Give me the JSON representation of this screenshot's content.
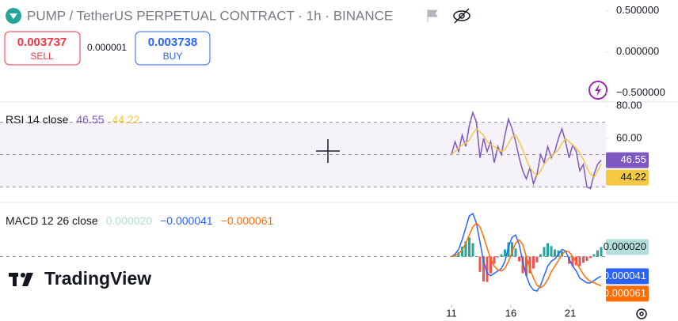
{
  "header": {
    "symbol": "PUMP / TetherUS PERPETUAL CONTRACT · 1h · BINANCE",
    "sell": {
      "price": "0.003737",
      "label": "SELL"
    },
    "spread": "0.000001",
    "buy": {
      "price": "0.003738",
      "label": "BUY"
    },
    "branding": "TradingView"
  },
  "chart_data": [
    {
      "type": "line",
      "ylim": [
        -0.6,
        0.63
      ],
      "yticks": [
        {
          "value": 0.5,
          "label": "0.500000"
        },
        {
          "value": 0,
          "label": "0.000000"
        },
        {
          "value": -0.5,
          "label": "−0.500000"
        }
      ]
    },
    {
      "type": "line",
      "title": "RSI 14 close",
      "xlim": [
        -27,
        24
      ],
      "x": [
        11,
        11.3,
        11.6,
        11.9,
        12.2,
        12.5,
        12.8,
        13.1,
        13.4,
        13.7,
        14,
        14.3,
        14.6,
        14.9,
        15.2,
        15.5,
        15.8,
        16.1,
        16.4,
        16.7,
        17,
        17.3,
        17.6,
        17.9,
        18.2,
        18.5,
        18.8,
        19.1,
        19.4,
        19.7,
        20,
        20.3,
        20.6,
        20.9,
        21.2,
        21.5,
        21.8,
        22.1,
        22.4,
        22.7,
        23,
        23.3,
        23.6
      ],
      "ylim": [
        21,
        82
      ],
      "yticks": [
        {
          "value": 80,
          "label": "80.00"
        },
        {
          "value": 60,
          "label": "60.00"
        }
      ],
      "levels": [
        70,
        50,
        30
      ],
      "band": [
        30,
        70
      ],
      "band_color": "#7e57c2",
      "series": [
        {
          "color": "#7e57c2",
          "values": [
            50,
            58,
            52,
            62,
            55,
            68,
            76,
            70,
            48,
            60,
            52,
            58,
            45,
            55,
            50,
            62,
            72,
            66,
            58,
            48,
            40,
            35,
            42,
            32,
            38,
            50,
            45,
            55,
            48,
            52,
            60,
            66,
            58,
            48,
            56,
            52,
            40,
            44,
            30,
            29,
            38,
            44,
            46.55
          ]
        },
        {
          "color": "#f5c842",
          "values": [
            50,
            52,
            54,
            56,
            57,
            59,
            63,
            66,
            64,
            62,
            58,
            56,
            55,
            53,
            52,
            53,
            57,
            61,
            62,
            58,
            53,
            47,
            42,
            39,
            37,
            40,
            44,
            47,
            49,
            51,
            53,
            57,
            60,
            58,
            56,
            54,
            51,
            47,
            42,
            38,
            36,
            40,
            44.22
          ]
        }
      ]
    },
    {
      "type": "line",
      "title": "MACD 12 26 close",
      "xlim": [
        -27,
        24
      ],
      "x": [
        11,
        11.3,
        11.6,
        11.9,
        12.2,
        12.5,
        12.8,
        13.1,
        13.4,
        13.7,
        14,
        14.3,
        14.6,
        14.9,
        15.2,
        15.5,
        15.8,
        16.1,
        16.4,
        16.7,
        17,
        17.3,
        17.6,
        17.9,
        18.2,
        18.5,
        18.8,
        19.1,
        19.4,
        19.7,
        20,
        20.3,
        20.6,
        20.9,
        21.2,
        21.5,
        21.8,
        22.1,
        22.4,
        22.7,
        23,
        23.3,
        23.6
      ],
      "xticks": [
        11,
        16,
        21
      ],
      "ylim": [
        -0.0001,
        0.00011
      ],
      "levels": [
        0
      ],
      "series": [
        {
          "kind": "histogram",
          "color": "#b2dfdb",
          "up_color": "#26a69a",
          "down_color": "#ef5350",
          "last_label": "0.000020",
          "values": [
            0,
            3e-06,
            9e-06,
            2.1e-05,
            3.2e-05,
            4e-05,
            2.8e-05,
            0,
            -3.2e-05,
            -5.2e-05,
            -5.3e-05,
            -3.5e-05,
            -1.5e-05,
            -2e-06,
            5e-06,
            1.5e-05,
            3e-05,
            3e-05,
            1.7e-05,
            -1e-05,
            -3.5e-05,
            -4e-05,
            -3.5e-05,
            -2.5e-05,
            -1.2e-05,
            5e-06,
            2e-05,
            2.8e-05,
            2.2e-05,
            1.5e-05,
            1.3e-05,
            1.1e-05,
            0,
            -1.5e-05,
            -2e-05,
            -1.8e-05,
            -2e-05,
            -1.3e-05,
            -9e-06,
            -3e-06,
            5e-06,
            1.3e-05,
            2e-05
          ]
        },
        {
          "color": "#2962ff",
          "last_label": "−0.000041",
          "values": [
            0,
            5e-06,
            1.5e-05,
            3.5e-05,
            6e-05,
            8.5e-05,
            9e-05,
            7e-05,
            3e-05,
            -1e-05,
            -3.5e-05,
            -4e-05,
            -3.5e-05,
            -3e-05,
            -2.5e-05,
            -1e-05,
            2e-05,
            4e-05,
            4.5e-05,
            2.5e-05,
            -1e-05,
            -4e-05,
            -6e-05,
            -7e-05,
            -7.2e-05,
            -6e-05,
            -4e-05,
            -2e-05,
            -1e-05,
            -5e-06,
            5e-06,
            1.5e-05,
            1.2e-05,
            -5e-06,
            -2e-05,
            -3e-05,
            -4.5e-05,
            -5e-05,
            -5.5e-05,
            -5.5e-05,
            -5e-05,
            -4.5e-05,
            -4.1e-05
          ]
        },
        {
          "color": "#ff6d00",
          "last_label": "−0.000061",
          "values": [
            0,
            2e-06,
            6e-06,
            1.4e-05,
            2.8e-05,
            4.5e-05,
            6.2e-05,
            7e-05,
            6.2e-05,
            4.2e-05,
            1.8e-05,
            -5e-06,
            -2e-05,
            -2.8e-05,
            -3e-05,
            -2.5e-05,
            -1e-05,
            1e-05,
            2.8e-05,
            3.5e-05,
            2.5e-05,
            0,
            -2.5e-05,
            -4.5e-05,
            -6e-05,
            -6.5e-05,
            -6e-05,
            -4.8e-05,
            -3.2e-05,
            -2e-05,
            -8e-06,
            4e-06,
            1.2e-05,
            1e-05,
            0,
            -1.2e-05,
            -2.5e-05,
            -3.7e-05,
            -4.6e-05,
            -5.2e-05,
            -5.5e-05,
            -5.8e-05,
            -6.1e-05
          ]
        }
      ]
    }
  ]
}
